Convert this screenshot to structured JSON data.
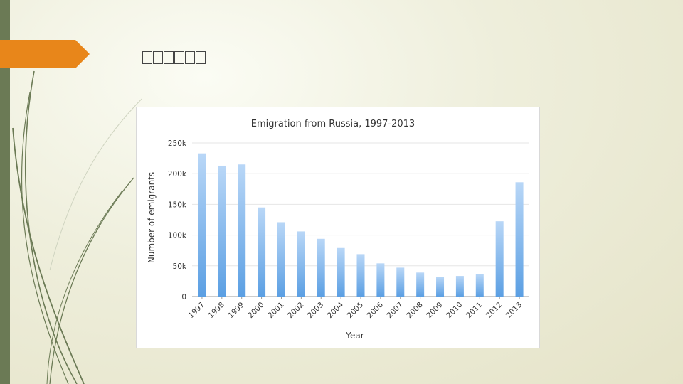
{
  "slide": {
    "title_glyphs": 6,
    "accent_color": "#e8861a",
    "side_bar_color": "#6b7a55"
  },
  "chart_data": {
    "type": "bar",
    "title": "Emigration from Russia, 1997-2013",
    "xlabel": "Year",
    "ylabel": "Number of emigrants",
    "categories": [
      "1997",
      "1998",
      "1999",
      "2000",
      "2001",
      "2002",
      "2003",
      "2004",
      "2005",
      "2006",
      "2007",
      "2008",
      "2009",
      "2010",
      "2011",
      "2012",
      "2013"
    ],
    "values": [
      233000,
      213000,
      215000,
      145000,
      121000,
      106000,
      94000,
      79000,
      69000,
      54000,
      47000,
      39000,
      32000,
      33500,
      36500,
      122500,
      186000
    ],
    "ylim": [
      0,
      250000
    ],
    "yticks": [
      0,
      50000,
      100000,
      150000,
      200000,
      250000
    ],
    "ytick_labels": [
      "0",
      "50k",
      "100k",
      "150k",
      "200k",
      "250k"
    ],
    "grid": true,
    "bar_color_top": "#b9d7f7",
    "bar_color_bottom": "#5b9fe3"
  }
}
